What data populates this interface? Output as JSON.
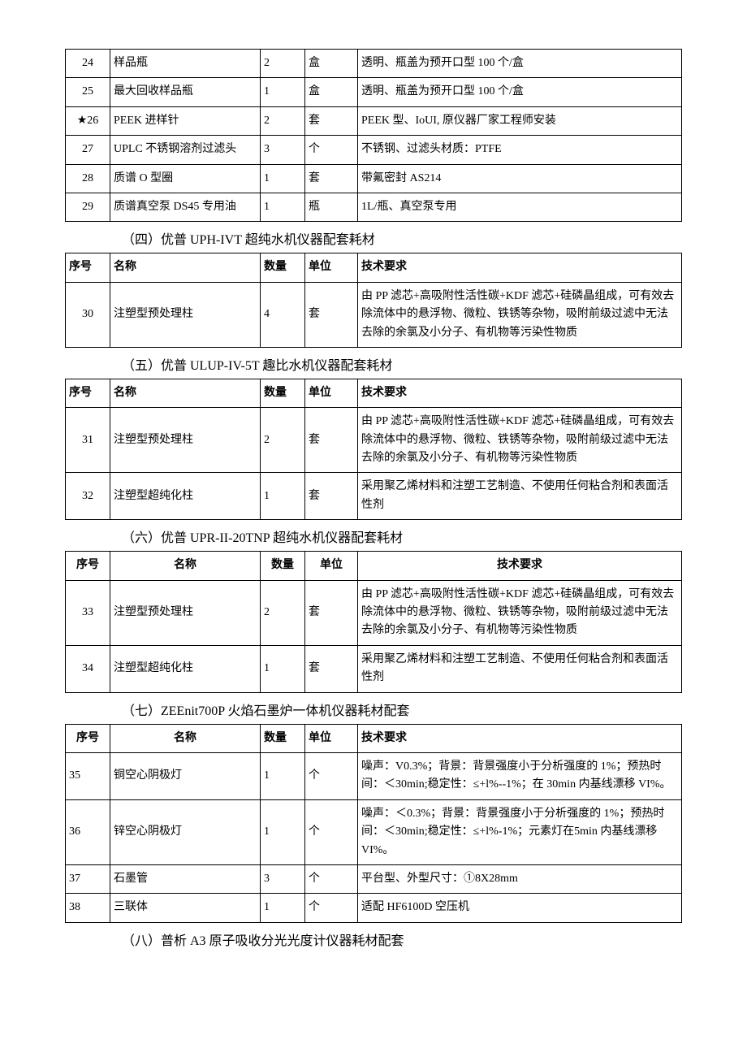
{
  "table1": {
    "rows": [
      {
        "seq": "24",
        "name": "样品瓶",
        "qty": "2",
        "unit": "盒",
        "req": "透明、瓶盖为预开口型 100 个/盒"
      },
      {
        "seq": "25",
        "name": "最大回收样品瓶",
        "qty": "1",
        "unit": "盒",
        "req": "透明、瓶盖为预开口型 100 个/盒"
      },
      {
        "seq": "★26",
        "name": "PEEK 进样针",
        "qty": "2",
        "unit": "套",
        "req": "PEEK 型、IoUI, 原仪器厂家工程师安装"
      },
      {
        "seq": "27",
        "name": "UPLC 不锈钢溶剂过滤头",
        "qty": "3",
        "unit": "个",
        "req": "不锈钢、过滤头材质：PTFE"
      },
      {
        "seq": "28",
        "name": "质谱 O 型圈",
        "qty": "1",
        "unit": "套",
        "req": "带氟密封 AS214"
      },
      {
        "seq": "29",
        "name": "质谱真空泵 DS45 专用油",
        "qty": "1",
        "unit": "瓶",
        "req": "1L/瓶、真空泵专用"
      }
    ]
  },
  "section4": {
    "title": "（四）优普 UPH-IVT 超纯水机仪器配套耗材",
    "headers": {
      "seq": "序号",
      "name": "名称",
      "qty": "数量",
      "unit": "单位",
      "req": "技术要求"
    },
    "rows": [
      {
        "seq": "30",
        "name": "注塑型预处理柱",
        "qty": "4",
        "unit": "套",
        "req": "由 PP 滤芯+高吸附性活性碳+KDF 滤芯+硅磷晶组成，可有效去除流体中的悬浮物、微粒、铁锈等杂物，吸附前级过滤中无法去除的余氯及小分子、有机物等污染性物质"
      }
    ]
  },
  "section5": {
    "title": "（五）优普 ULUP-IV-5T 趣比水机仪器配套耗材",
    "headers": {
      "seq": "序号",
      "name": "名称",
      "qty": "数量",
      "unit": "单位",
      "req": "技术要求"
    },
    "rows": [
      {
        "seq": "31",
        "name": "注塑型预处理柱",
        "qty": "2",
        "unit": "套",
        "req": "由 PP 滤芯+高吸附性活性碳+KDF 滤芯+硅磷晶组成，可有效去除流体中的悬浮物、微粒、铁锈等杂物，吸附前级过滤中无法去除的余氯及小分子、有机物等污染性物质"
      },
      {
        "seq": "32",
        "name": "注塑型超纯化柱",
        "qty": "1",
        "unit": "套",
        "req": "采用聚乙烯材料和注塑工艺制造、不使用任何粘合剂和表面活性剂"
      }
    ]
  },
  "section6": {
    "title": "（六）优普 UPR-II-20TNP 超纯水机仪器配套耗材",
    "headers": {
      "seq": "序号",
      "name": "名称",
      "qty": "数量",
      "unit": "单位",
      "req": "技术要求"
    },
    "rows": [
      {
        "seq": "33",
        "name": "注塑型预处理柱",
        "qty": "2",
        "unit": "套",
        "req": "由 PP 滤芯+高吸附性活性碳+KDF 滤芯+硅磷晶组成，可有效去除流体中的悬浮物、微粒、铁锈等杂物，吸附前级过滤中无法去除的余氯及小分子、有机物等污染性物质"
      },
      {
        "seq": "34",
        "name": "注塑型超纯化柱",
        "qty": "1",
        "unit": "套",
        "req": "采用聚乙烯材料和注塑工艺制造、不使用任何粘合剂和表面活性剂"
      }
    ]
  },
  "section7": {
    "title": "（七）ZEEnit700P 火焰石墨炉一体机仪器耗材配套",
    "headers": {
      "seq": "序号",
      "name": "名称",
      "qty": "数量",
      "unit": "单位",
      "req": "技术要求"
    },
    "rows": [
      {
        "seq": "35",
        "name": "铜空心阴极灯",
        "qty": "1",
        "unit": "个",
        "req": "噪声：V0.3%；背景：背景强度小于分析强度的 1%；预热时间：＜30min;稳定性：≤+l%--1%；在 30min 内基线漂移 VI%。"
      },
      {
        "seq": "36",
        "name": "锌空心阴极灯",
        "qty": "1",
        "unit": "个",
        "req": "噪声：＜0.3%；背景：背景强度小于分析强度的 1%；预热时间：＜30min;稳定性：≤+l%-1%；元素灯在5min 内基线漂移 VI%。"
      },
      {
        "seq": "37",
        "name": "石墨管",
        "qty": "3",
        "unit": "个",
        "req": "平台型、外型尺寸：①8X28mm"
      },
      {
        "seq": "38",
        "name": "三联体",
        "qty": "1",
        "unit": "个",
        "req": "适配 HF6100D 空压机"
      }
    ]
  },
  "section8": {
    "title": "（八）普析 A3 原子吸收分光光度计仪器耗材配套"
  }
}
